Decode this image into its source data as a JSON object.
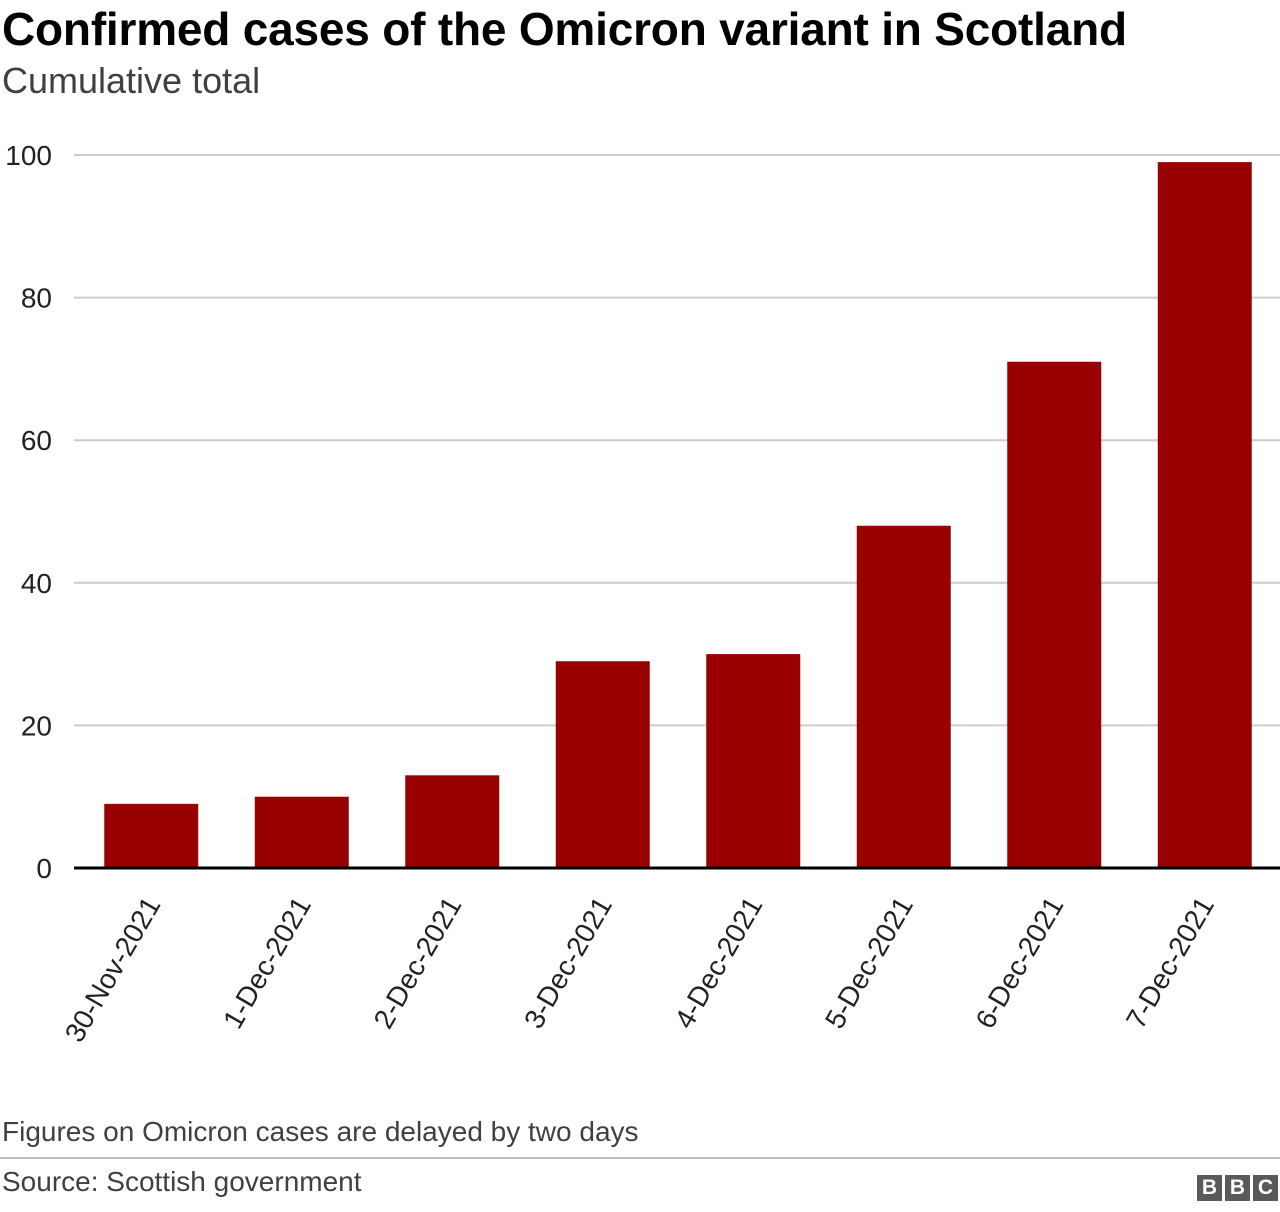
{
  "header": {
    "title": "Confirmed cases of the Omicron variant in Scotland",
    "subtitle": "Cumulative total"
  },
  "footer": {
    "note": "Figures on Omicron cases are delayed by two days",
    "source": "Source: Scottish government",
    "logo": [
      "B",
      "B",
      "C"
    ]
  },
  "colors": {
    "bar": "#990000",
    "gridline": "#cccccc",
    "baseline": "#000000"
  },
  "chart_data": {
    "type": "bar",
    "title": "Confirmed cases of the Omicron variant in Scotland",
    "subtitle": "Cumulative total",
    "xlabel": "",
    "ylabel": "",
    "categories": [
      "30-Nov-2021",
      "1-Dec-2021",
      "2-Dec-2021",
      "3-Dec-2021",
      "4-Dec-2021",
      "5-Dec-2021",
      "6-Dec-2021",
      "7-Dec-2021"
    ],
    "values": [
      9,
      10,
      13,
      29,
      30,
      48,
      71,
      99
    ],
    "ylim": [
      0,
      100
    ],
    "yticks": [
      0,
      20,
      40,
      60,
      80,
      100
    ],
    "grid": true,
    "legend": "none"
  }
}
